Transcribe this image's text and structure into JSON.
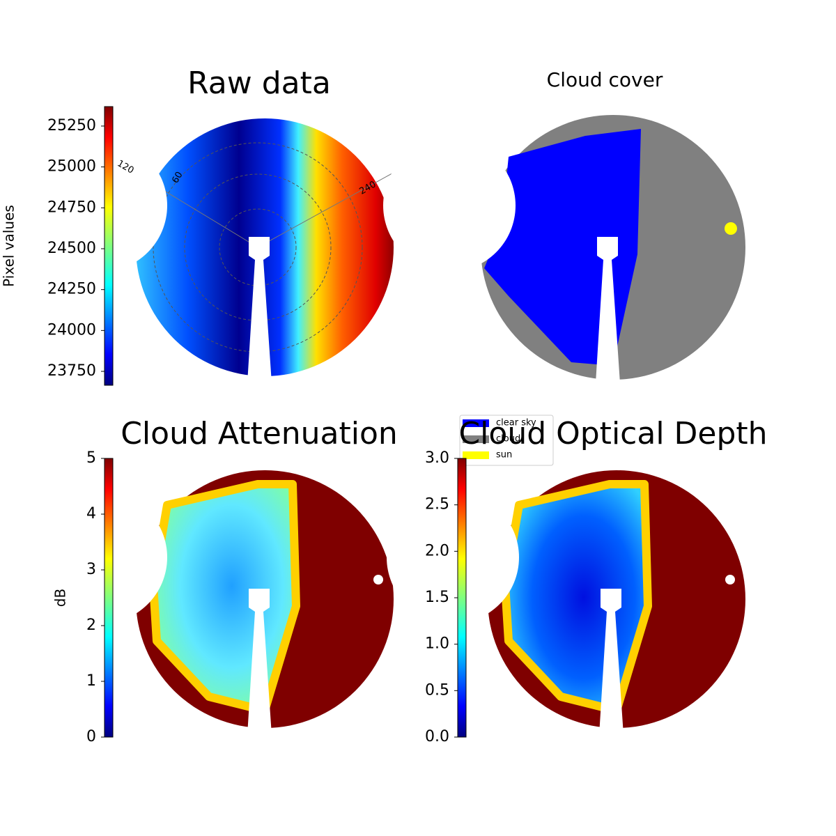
{
  "chart_data": [
    {
      "type": "image",
      "title": "Raw data",
      "colorbar_label": "Pixel values",
      "colormap": "jet",
      "clim": [
        23665,
        25369
      ],
      "cticks": [
        23750,
        24000,
        24250,
        24500,
        24750,
        25000,
        25250
      ],
      "annotations": [
        "120",
        "60",
        "240"
      ]
    },
    {
      "type": "image",
      "title": "Cloud cover",
      "legend": [
        {
          "name": "clear sky",
          "color": "#0000ff"
        },
        {
          "name": "cloud",
          "color": "#808080"
        },
        {
          "name": "sun",
          "color": "#ffff00"
        }
      ]
    },
    {
      "type": "image",
      "title": "Cloud Attenuation",
      "colorbar_label": "dB",
      "colormap": "jet",
      "clim": [
        0,
        5
      ],
      "cticks": [
        0,
        1,
        2,
        3,
        4,
        5
      ]
    },
    {
      "type": "image",
      "title": "Cloud Optical Depth",
      "colormap": "jet",
      "clim": [
        0,
        3
      ],
      "cticks": [
        {
          "value": 0,
          "label": "0.0"
        },
        {
          "value": 0.5,
          "label": "0.5"
        },
        {
          "value": 1,
          "label": "1.0"
        },
        {
          "value": 1.5,
          "label": "1.5"
        },
        {
          "value": 2,
          "label": "2.0"
        },
        {
          "value": 2.5,
          "label": "2.5"
        },
        {
          "value": 3,
          "label": "3.0"
        }
      ]
    }
  ]
}
